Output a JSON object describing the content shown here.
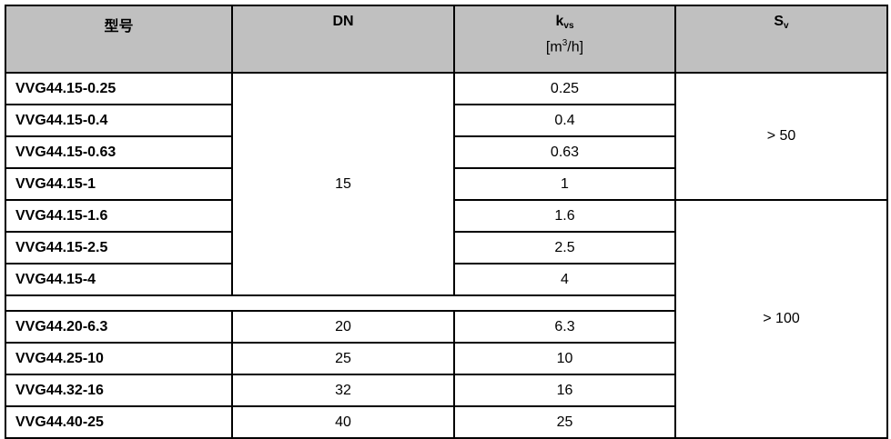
{
  "headers": {
    "model": "型号",
    "dn": "DN",
    "kvs_main": "k",
    "kvs_sub": "vs",
    "kvs_unit_pre": "[m",
    "kvs_unit_sup": "3",
    "kvs_unit_post": "/h]",
    "sv_main": "S",
    "sv_sub": "v"
  },
  "rows": [
    {
      "model": "VVG44.15-0.25",
      "kvs": "0.25"
    },
    {
      "model": "VVG44.15-0.4",
      "kvs": "0.4"
    },
    {
      "model": "VVG44.15-0.63",
      "kvs": "0.63"
    },
    {
      "model": "VVG44.15-1",
      "kvs": "1"
    },
    {
      "model": "VVG44.15-1.6",
      "kvs": "1.6"
    },
    {
      "model": "VVG44.15-2.5",
      "kvs": "2.5"
    },
    {
      "model": "VVG44.15-4",
      "kvs": "4"
    },
    {
      "model": "VVG44.20-6.3",
      "dn": "20",
      "kvs": "6.3"
    },
    {
      "model": "VVG44.25-10",
      "dn": "25",
      "kvs": "10"
    },
    {
      "model": "VVG44.32-16",
      "dn": "32",
      "kvs": "16"
    },
    {
      "model": "VVG44.40-25",
      "dn": "40",
      "kvs": "25"
    }
  ],
  "dn_group_15": "15",
  "sv_groups": [
    "> 50",
    "> 100"
  ]
}
